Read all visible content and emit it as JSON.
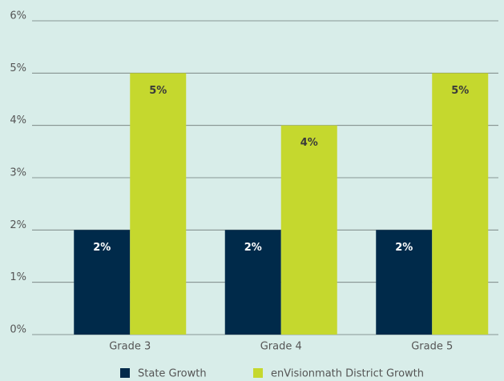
{
  "chart_data": {
    "type": "bar",
    "categories": [
      "Grade 3",
      "Grade 4",
      "Grade 5"
    ],
    "series": [
      {
        "name": "State Growth",
        "color": "#002a4a",
        "values": [
          2,
          2,
          2
        ],
        "value_labels": [
          "2%",
          "2%",
          "2%"
        ]
      },
      {
        "name": "enVisionmath District Growth",
        "color": "#c5d82e",
        "values": [
          5,
          4,
          5
        ],
        "value_labels": [
          "5%",
          "4%",
          "5%"
        ]
      }
    ],
    "ylim": [
      0,
      6
    ],
    "yticks": [
      {
        "value": 0,
        "label": "0%"
      },
      {
        "value": 1,
        "label": "1%"
      },
      {
        "value": 2,
        "label": "2%"
      },
      {
        "value": 3,
        "label": "3%"
      },
      {
        "value": 4,
        "label": "4%"
      },
      {
        "value": 5,
        "label": "5%"
      },
      {
        "value": 6,
        "label": "6%"
      }
    ],
    "grid": true,
    "legend": "bottom"
  }
}
